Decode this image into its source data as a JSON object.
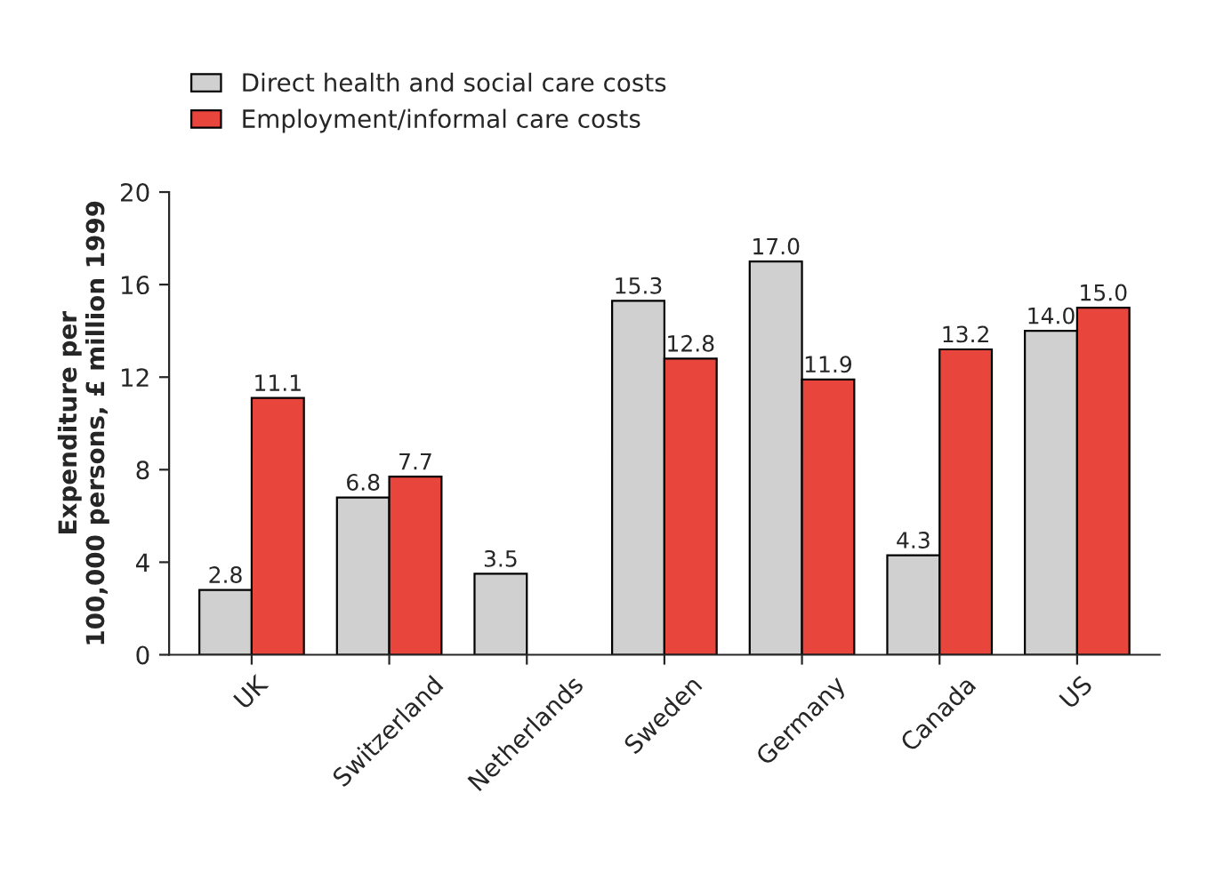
{
  "chart_data": {
    "type": "bar",
    "ylabel": "Expenditure per\n100,000 persons, £ million 1999",
    "categories": [
      "UK",
      "Switzerland",
      "Netherlands",
      "Sweden",
      "Germany",
      "Canada",
      "US"
    ],
    "series": [
      {
        "name": "Direct health and social care costs",
        "color": "#d0d0d0",
        "values": [
          2.8,
          6.8,
          3.5,
          15.3,
          17.0,
          4.3,
          14.0
        ],
        "value_labels": [
          "2.8",
          "6.8",
          "3.5",
          "15.3",
          "17.0",
          "4.3",
          "14.0"
        ]
      },
      {
        "name": "Employment/informal care costs",
        "color": "#e8453c",
        "values": [
          11.1,
          7.7,
          null,
          12.8,
          11.9,
          13.2,
          15.0
        ],
        "value_labels": [
          "11.1",
          "7.7",
          null,
          "12.8",
          "11.9",
          "13.2",
          "15.0"
        ]
      }
    ],
    "ylim": [
      0,
      20
    ],
    "yticks": [
      0,
      4,
      8,
      12,
      16,
      20
    ],
    "grid": false,
    "legend": "top left"
  }
}
